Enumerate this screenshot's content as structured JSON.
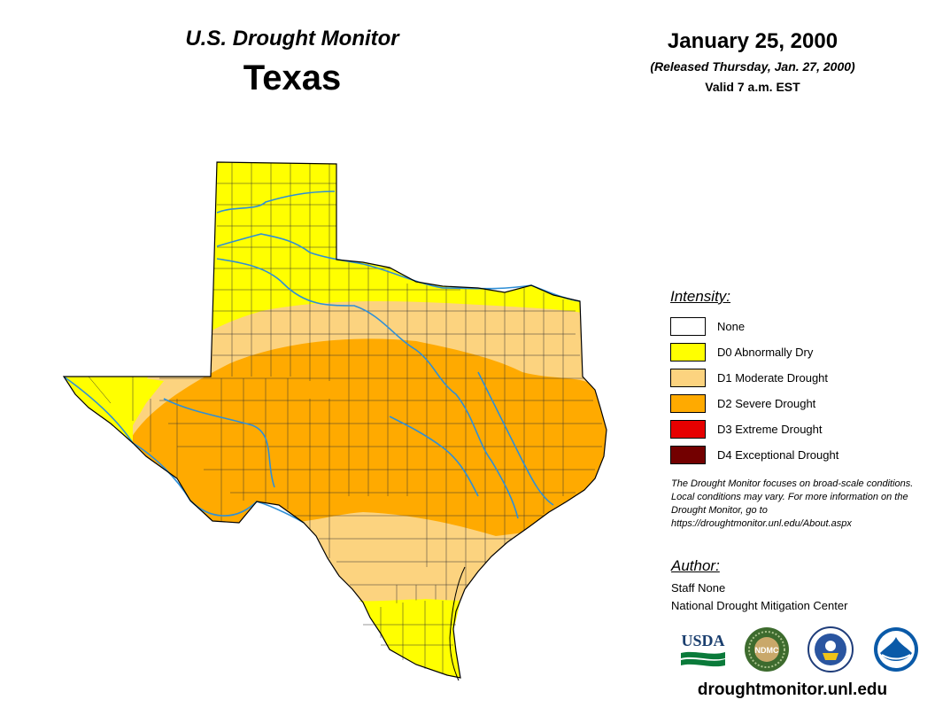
{
  "header": {
    "title": "U.S. Drought Monitor",
    "state": "Texas",
    "date": "January 25, 2000",
    "released": "(Released Thursday, Jan. 27, 2000)",
    "valid": "Valid 7 a.m. EST"
  },
  "legend": {
    "title": "Intensity:",
    "items": [
      {
        "label": "None",
        "color": "#ffffff"
      },
      {
        "label": "D0 Abnormally Dry",
        "color": "#ffff00"
      },
      {
        "label": "D1 Moderate Drought",
        "color": "#fcd37f"
      },
      {
        "label": "D2 Severe Drought",
        "color": "#ffaa00"
      },
      {
        "label": "D3 Extreme Drought",
        "color": "#e60000"
      },
      {
        "label": "D4 Exceptional Drought",
        "color": "#730000"
      }
    ]
  },
  "note": {
    "text": "The Drought Monitor focuses on broad-scale conditions. Local conditions may vary. For more information on the Drought Monitor, go to https://droughtmonitor.unl.edu/About.aspx"
  },
  "author": {
    "title": "Author:",
    "name": "Staff None",
    "org": "National Drought Mitigation Center"
  },
  "logos": {
    "usda": "USDA",
    "ndmc": "NDMC",
    "commerce": "DOC",
    "noaa": "NOAA"
  },
  "footer": {
    "url": "droughtmonitor.unl.edu"
  },
  "colors": {
    "river": "#2f8fd6",
    "outline": "#000000"
  }
}
